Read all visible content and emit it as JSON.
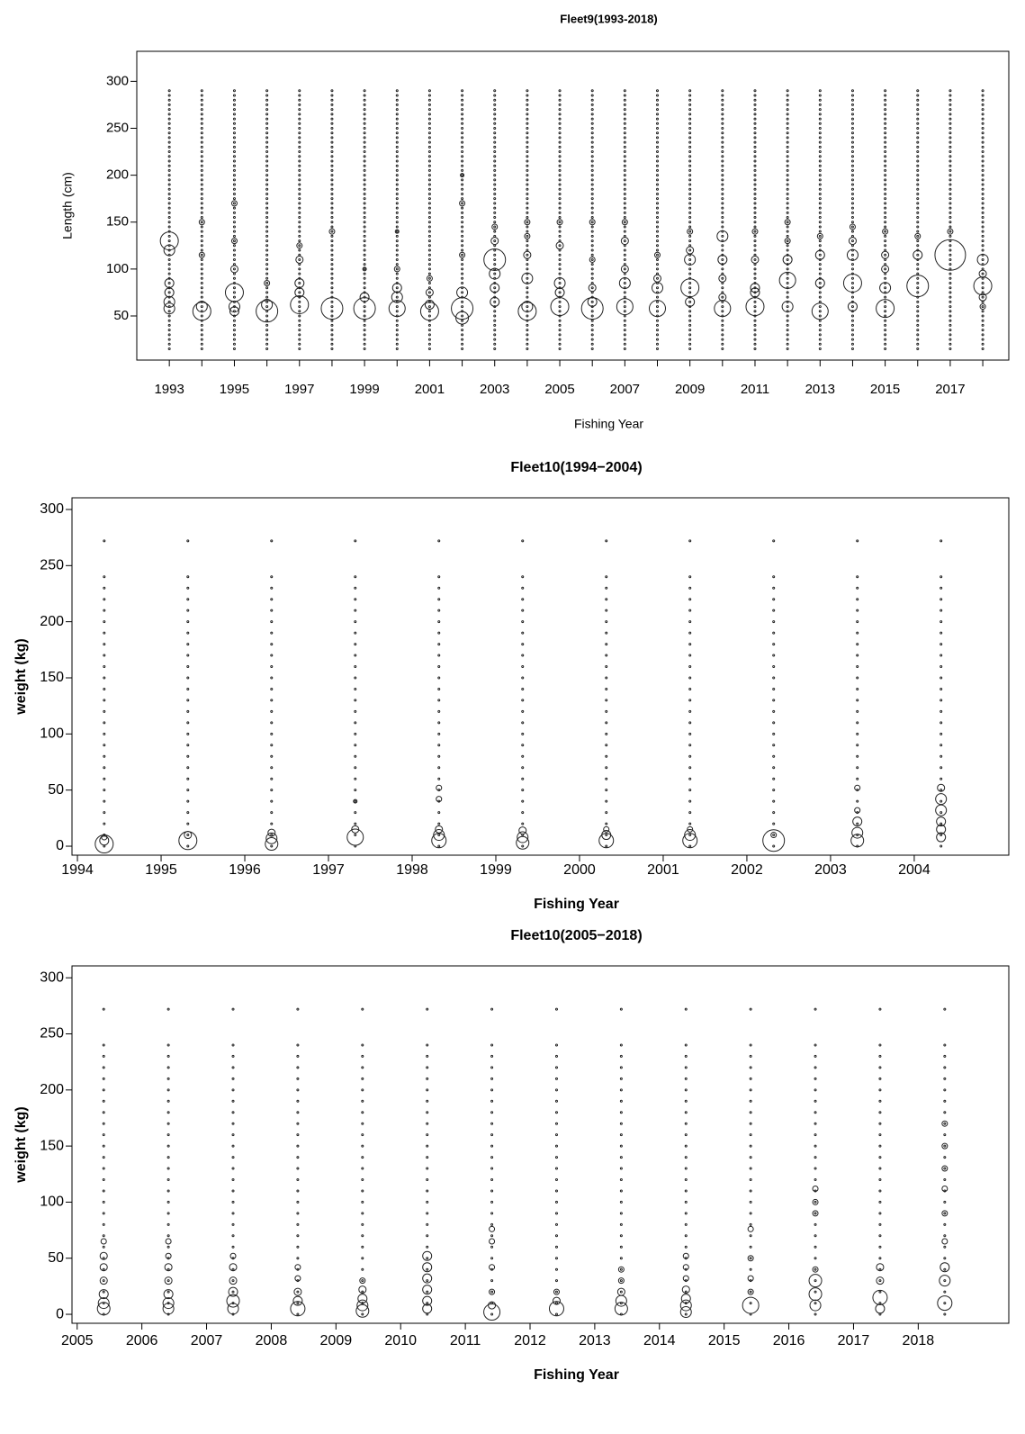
{
  "chart_data": [
    {
      "type": "bubble",
      "title": "Fleet9(1993-2018)",
      "xlabel": "Fishing Year",
      "ylabel": "Length (cm)",
      "bold_axis_labels": false,
      "xlim": [
        1992,
        2018.8
      ],
      "ylim": [
        3,
        332
      ],
      "xticks": [
        1993,
        1995,
        1997,
        1999,
        2001,
        2003,
        2005,
        2007,
        2009,
        2011,
        2013,
        2015,
        2017
      ],
      "xminor_ticks": [
        1994,
        1996,
        1998,
        2000,
        2002,
        2004,
        2006,
        2008,
        2010,
        2012,
        2014,
        2016,
        2018
      ],
      "yticks": [
        50,
        100,
        150,
        200,
        250,
        300
      ],
      "bins": [
        15,
        20,
        25,
        30,
        35,
        40,
        45,
        50,
        55,
        60,
        65,
        70,
        75,
        80,
        85,
        90,
        95,
        100,
        105,
        110,
        115,
        120,
        125,
        130,
        135,
        140,
        145,
        150,
        155,
        160,
        165,
        170,
        175,
        180,
        185,
        190,
        195,
        200,
        205,
        210,
        215,
        220,
        225,
        230,
        235,
        240,
        245,
        250,
        255,
        260,
        265,
        270,
        275,
        280,
        285,
        290
      ],
      "series": [
        {
          "x": 1993,
          "y": [
            130,
            120,
            85,
            75,
            65,
            58
          ],
          "size": [
            10,
            6,
            5,
            5,
            6,
            6
          ]
        },
        {
          "x": 1994,
          "y": [
            55,
            60,
            150,
            115
          ],
          "size": [
            10,
            6,
            3,
            3
          ]
        },
        {
          "x": 1995,
          "y": [
            75,
            60,
            55,
            100,
            130,
            170
          ],
          "size": [
            10,
            6,
            5,
            4,
            3,
            3
          ]
        },
        {
          "x": 1996,
          "y": [
            55,
            62,
            85
          ],
          "size": [
            12,
            6,
            3
          ]
        },
        {
          "x": 1997,
          "y": [
            62,
            75,
            85,
            110,
            125
          ],
          "size": [
            10,
            5,
            5,
            4,
            3
          ]
        },
        {
          "x": 1998,
          "y": [
            58,
            140
          ],
          "size": [
            12,
            3
          ]
        },
        {
          "x": 1999,
          "y": [
            58,
            70,
            100
          ],
          "size": [
            12,
            5,
            2
          ]
        },
        {
          "x": 2000,
          "y": [
            58,
            70,
            80,
            100,
            140
          ],
          "size": [
            9,
            6,
            5,
            3,
            2
          ]
        },
        {
          "x": 2001,
          "y": [
            55,
            62,
            75,
            90
          ],
          "size": [
            10,
            5,
            4,
            3
          ]
        },
        {
          "x": 2002,
          "y": [
            58,
            48,
            75,
            115,
            170,
            200
          ],
          "size": [
            12,
            7,
            6,
            3,
            3,
            2
          ]
        },
        {
          "x": 2003,
          "y": [
            110,
            95,
            80,
            65,
            130,
            145
          ],
          "size": [
            12,
            6,
            5,
            5,
            4,
            3
          ]
        },
        {
          "x": 2004,
          "y": [
            55,
            60,
            90,
            115,
            135,
            150
          ],
          "size": [
            10,
            6,
            6,
            4,
            3,
            3
          ]
        },
        {
          "x": 2005,
          "y": [
            60,
            85,
            75,
            125,
            150
          ],
          "size": [
            10,
            6,
            5,
            4,
            3
          ]
        },
        {
          "x": 2006,
          "y": [
            58,
            65,
            80,
            110,
            150
          ],
          "size": [
            12,
            5,
            4,
            3,
            3
          ]
        },
        {
          "x": 2007,
          "y": [
            60,
            85,
            100,
            130,
            150
          ],
          "size": [
            9,
            6,
            4,
            4,
            3
          ]
        },
        {
          "x": 2008,
          "y": [
            58,
            80,
            90,
            115
          ],
          "size": [
            9,
            6,
            4,
            3
          ]
        },
        {
          "x": 2009,
          "y": [
            80,
            65,
            110,
            120,
            140
          ],
          "size": [
            10,
            5,
            6,
            4,
            3
          ]
        },
        {
          "x": 2010,
          "y": [
            58,
            135,
            110,
            90,
            70
          ],
          "size": [
            9,
            6,
            5,
            4,
            4
          ]
        },
        {
          "x": 2011,
          "y": [
            60,
            75,
            80,
            110,
            140
          ],
          "size": [
            10,
            5,
            5,
            4,
            3
          ]
        },
        {
          "x": 2012,
          "y": [
            88,
            60,
            110,
            130,
            150
          ],
          "size": [
            9,
            6,
            5,
            3,
            3
          ]
        },
        {
          "x": 2013,
          "y": [
            55,
            85,
            115,
            135
          ],
          "size": [
            9,
            5,
            5,
            3
          ]
        },
        {
          "x": 2014,
          "y": [
            85,
            115,
            60,
            130,
            145
          ],
          "size": [
            10,
            6,
            5,
            4,
            3
          ]
        },
        {
          "x": 2015,
          "y": [
            58,
            80,
            100,
            115,
            140
          ],
          "size": [
            10,
            6,
            4,
            4,
            3
          ]
        },
        {
          "x": 2016,
          "y": [
            82,
            115,
            135
          ],
          "size": [
            12,
            5,
            3
          ]
        },
        {
          "x": 2017,
          "y": [
            115,
            140
          ],
          "size": [
            17,
            3
          ]
        },
        {
          "x": 2018,
          "y": [
            82,
            110,
            95,
            70,
            60
          ],
          "size": [
            10,
            6,
            4,
            4,
            3
          ]
        }
      ]
    },
    {
      "type": "bubble",
      "title": "Fleet10(1994−2004)",
      "xlabel": "Fishing Year",
      "ylabel": "weight (kg)",
      "bold_axis_labels": true,
      "xlim": [
        1993.935,
        2005.13
      ],
      "ylim": [
        -8,
        310.4
      ],
      "xticks": [
        1994,
        1995,
        1996,
        1997,
        1998,
        1999,
        2000,
        2001,
        2002,
        2003,
        2004
      ],
      "yticks": [
        0,
        50,
        100,
        150,
        200,
        250,
        300
      ],
      "bins": [
        0,
        10,
        20,
        30,
        40,
        50,
        60,
        70,
        80,
        90,
        100,
        110,
        120,
        130,
        140,
        150,
        160,
        170,
        180,
        190,
        200,
        210,
        220,
        230,
        240,
        272
      ],
      "series": [
        {
          "x": 1994.32,
          "y": [
            2,
            5,
            8
          ],
          "size": [
            10,
            5,
            3
          ]
        },
        {
          "x": 1995.32,
          "y": [
            5,
            10
          ],
          "size": [
            10,
            4
          ]
        },
        {
          "x": 1996.32,
          "y": [
            2,
            7,
            12
          ],
          "size": [
            7,
            6,
            4
          ]
        },
        {
          "x": 1997.32,
          "y": [
            8,
            15,
            40
          ],
          "size": [
            9,
            4,
            2
          ]
        },
        {
          "x": 1998.32,
          "y": [
            5,
            10,
            15,
            42,
            52
          ],
          "size": [
            8,
            6,
            4,
            3,
            3
          ]
        },
        {
          "x": 1999.32,
          "y": [
            3,
            8,
            14
          ],
          "size": [
            7,
            6,
            4
          ]
        },
        {
          "x": 2000.32,
          "y": [
            5,
            10,
            15
          ],
          "size": [
            8,
            5,
            3
          ]
        },
        {
          "x": 2001.32,
          "y": [
            5,
            10,
            15
          ],
          "size": [
            8,
            6,
            3
          ]
        },
        {
          "x": 2002.32,
          "y": [
            5,
            10
          ],
          "size": [
            12,
            3
          ]
        },
        {
          "x": 2003.32,
          "y": [
            5,
            12,
            22,
            32,
            52
          ],
          "size": [
            7,
            6,
            5,
            3,
            3
          ]
        },
        {
          "x": 2004.32,
          "y": [
            8,
            15,
            22,
            32,
            42,
            52
          ],
          "size": [
            5,
            5,
            5,
            6,
            6,
            4
          ]
        }
      ]
    },
    {
      "type": "bubble",
      "title": "Fleet10(2005−2018)",
      "xlabel": "Fishing Year",
      "ylabel": "weight (kg)",
      "bold_axis_labels": true,
      "xlim": [
        2004.92,
        2019.4
      ],
      "ylim": [
        -8,
        310.6
      ],
      "xticks": [
        2005,
        2006,
        2007,
        2008,
        2009,
        2010,
        2011,
        2012,
        2013,
        2014,
        2015,
        2016,
        2017,
        2018
      ],
      "yticks": [
        0,
        50,
        100,
        150,
        200,
        250,
        300
      ],
      "bins": [
        0,
        10,
        20,
        30,
        40,
        50,
        60,
        70,
        80,
        90,
        100,
        110,
        120,
        130,
        140,
        150,
        160,
        170,
        180,
        190,
        200,
        210,
        220,
        230,
        240,
        272
      ],
      "series": [
        {
          "x": 2005.41,
          "y": [
            5,
            10,
            18,
            30,
            42,
            52,
            65
          ],
          "size": [
            7,
            6,
            5,
            4,
            4,
            4,
            3
          ]
        },
        {
          "x": 2006.41,
          "y": [
            5,
            10,
            18,
            30,
            42,
            52,
            65
          ],
          "size": [
            6,
            6,
            5,
            4,
            4,
            3,
            3
          ]
        },
        {
          "x": 2007.41,
          "y": [
            5,
            12,
            20,
            30,
            42,
            52
          ],
          "size": [
            6,
            7,
            5,
            4,
            4,
            3
          ]
        },
        {
          "x": 2008.41,
          "y": [
            5,
            12,
            20,
            32,
            42
          ],
          "size": [
            8,
            5,
            4,
            3,
            3
          ]
        },
        {
          "x": 2009.41,
          "y": [
            3,
            8,
            14,
            22,
            30
          ],
          "size": [
            7,
            6,
            5,
            4,
            3
          ]
        },
        {
          "x": 2010.41,
          "y": [
            5,
            12,
            22,
            32,
            42,
            52
          ],
          "size": [
            5,
            5,
            5,
            5,
            5,
            5
          ]
        },
        {
          "x": 2011.41,
          "y": [
            2,
            8,
            20,
            42,
            65,
            76
          ],
          "size": [
            9,
            4,
            3,
            3,
            3,
            3
          ]
        },
        {
          "x": 2012.41,
          "y": [
            5,
            12,
            20
          ],
          "size": [
            8,
            4,
            3
          ]
        },
        {
          "x": 2013.41,
          "y": [
            5,
            12,
            20,
            30,
            40
          ],
          "size": [
            7,
            6,
            4,
            3,
            3
          ]
        },
        {
          "x": 2014.41,
          "y": [
            2,
            8,
            14,
            22,
            32,
            42,
            52
          ],
          "size": [
            6,
            6,
            5,
            4,
            3,
            3,
            3
          ]
        },
        {
          "x": 2015.41,
          "y": [
            8,
            20,
            32,
            50,
            76
          ],
          "size": [
            9,
            3,
            3,
            3,
            3
          ]
        },
        {
          "x": 2016.41,
          "y": [
            8,
            18,
            30,
            40,
            90,
            100,
            112
          ],
          "size": [
            6,
            7,
            7,
            3,
            3,
            3,
            3
          ]
        },
        {
          "x": 2017.41,
          "y": [
            5,
            15,
            30,
            42
          ],
          "size": [
            5,
            8,
            4,
            4
          ]
        },
        {
          "x": 2018.41,
          "y": [
            10,
            30,
            42,
            65,
            90,
            112,
            130,
            150,
            170
          ],
          "size": [
            8,
            6,
            5,
            3,
            3,
            3,
            3,
            3,
            3
          ]
        }
      ]
    }
  ]
}
